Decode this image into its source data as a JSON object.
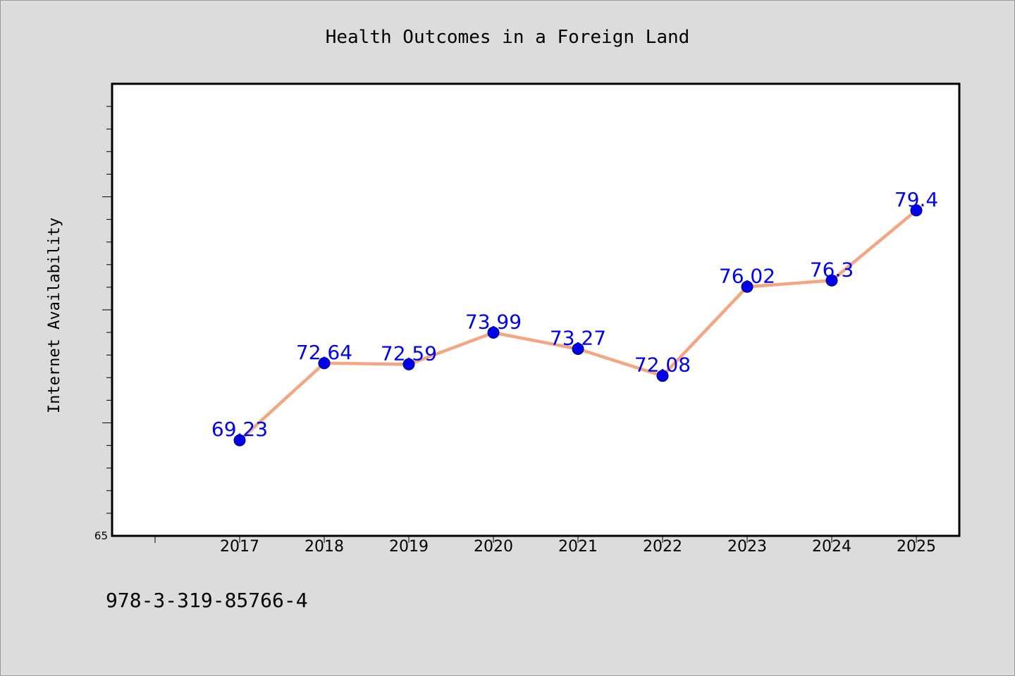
{
  "chart_data": {
    "type": "line",
    "title": "Health Outcomes in a Foreign Land",
    "xlabel": "",
    "ylabel": "Internet Availability",
    "categories": [
      "2017",
      "2018",
      "2019",
      "2020",
      "2021",
      "2022",
      "2023",
      "2024",
      "2025"
    ],
    "series": [
      {
        "values": [
          69.23,
          72.64,
          72.59,
          73.99,
          73.27,
          72.08,
          76.02,
          76.3,
          79.4
        ],
        "data_labels": [
          "69.23",
          "72.64",
          "72.59",
          "73.99",
          "73.27",
          "72.08",
          "76.02",
          "76.3",
          "79.4"
        ],
        "line_color": "#f4a582",
        "marker_color": "#0000ee",
        "label_color": "#0000ee"
      }
    ],
    "ylim": [
      65,
      85
    ],
    "ytick_labels": [
      "65"
    ],
    "grid": false,
    "legend": "none"
  },
  "footer": {
    "code": "978-3-319-85766-4"
  },
  "colors": {
    "background": "#dcdcdc",
    "plot_background": "#ffffff",
    "axis": "#000000"
  }
}
